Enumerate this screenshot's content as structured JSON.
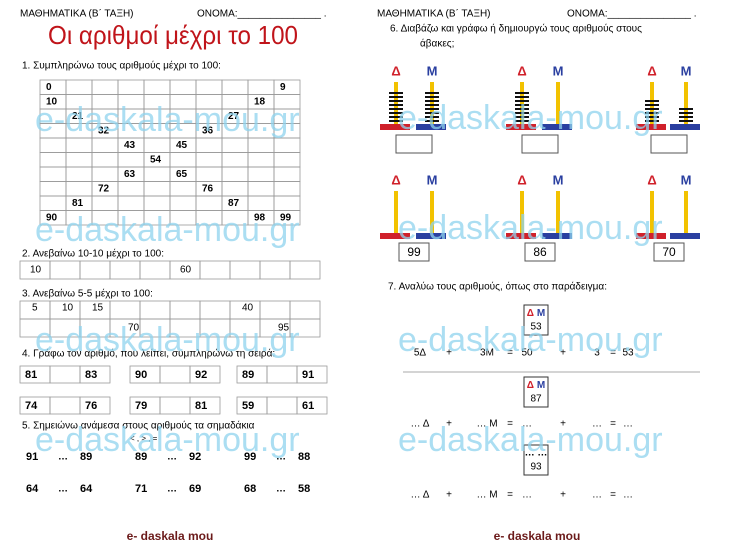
{
  "watermark": "e-daskala-mou.gr",
  "left": {
    "header": {
      "subject": "ΜΑΘΗΜΑΤΙΚΑ (Β΄ ΤΑΞΗ)",
      "name_field": "ΟΝΟΜΑ:_______________ ."
    },
    "title": "Οι αριθμοί μέχρι το 100",
    "ex1": {
      "instruction": "1. Συμπληρώνω τους αριθμούς μέχρι το 100:",
      "numbers": [
        0,
        9,
        10,
        18,
        21,
        27,
        32,
        36,
        43,
        45,
        54,
        63,
        65,
        72,
        76,
        81,
        87,
        90,
        98,
        99
      ]
    },
    "ex2": {
      "instruction": "2. Ανεβαίνω 10-10 μέχρι το 100:",
      "numbers": [
        10,
        60
      ]
    },
    "ex3": {
      "instruction": "3. Ανεβαίνω 5-5 μέχρι το 100:",
      "numbers": [
        5,
        10,
        15,
        40,
        70,
        95
      ]
    },
    "ex4": {
      "instruction": "4. Γράφω τον αριθμό, που λείπει, συμπληρώνω τη σειρά:",
      "groups": [
        [
          81,
          83
        ],
        [
          90,
          92
        ],
        [
          89,
          91
        ],
        [
          74,
          76
        ],
        [
          79,
          81
        ],
        [
          59,
          61
        ]
      ]
    },
    "ex5": {
      "instruction": "5. Σημειώνω ανάμεσα στους αριθμούς τα σημαδάκια",
      "hint": "< , > , =",
      "gap": "…",
      "pairs": [
        [
          91,
          89
        ],
        [
          89,
          92
        ],
        [
          99,
          88
        ],
        [
          64,
          64
        ],
        [
          71,
          69
        ],
        [
          68,
          58
        ]
      ]
    },
    "footer": "e- daskala mou"
  },
  "right": {
    "header": {
      "subject": "ΜΑΘΗΜΑΤΙΚΑ (Β΄ ΤΑΞΗ)",
      "name_field": "ΟΝΟΜΑ:_______________ ."
    },
    "ex6": {
      "instruction_line1": "6. Διαβάζω και γράφω ή δημιουργώ τους αριθμούς στους",
      "instruction_line2": "άβακες;",
      "tens_label": "Δ",
      "units_label": "Μ",
      "row1_beads": [
        {
          "tens": 8,
          "units": 8
        },
        {
          "tens": 8,
          "units": 0
        },
        {
          "tens": 6,
          "units": 4
        }
      ],
      "row2_numbers": [
        99,
        86,
        70
      ]
    },
    "ex7": {
      "instruction": "7. Αναλύω τους αριθμούς, όπως στο παράδειγμα:",
      "items": [
        {
          "heading": "Δ Μ",
          "number": 53,
          "line": [
            "5Δ",
            "+",
            "3Μ",
            "=",
            "50",
            "+",
            "3",
            "=",
            "53"
          ]
        },
        {
          "heading": "Δ Μ",
          "number": 87,
          "line": [
            "… Δ",
            "+",
            "… Μ",
            "=",
            "…",
            "+",
            "…",
            "=",
            "…"
          ]
        },
        {
          "heading": "… …",
          "number": 93,
          "line": [
            "… Δ",
            "+",
            "… Μ",
            "=",
            "…",
            "+",
            "…",
            "=",
            "…"
          ]
        }
      ]
    },
    "footer": "e- daskala mou"
  }
}
